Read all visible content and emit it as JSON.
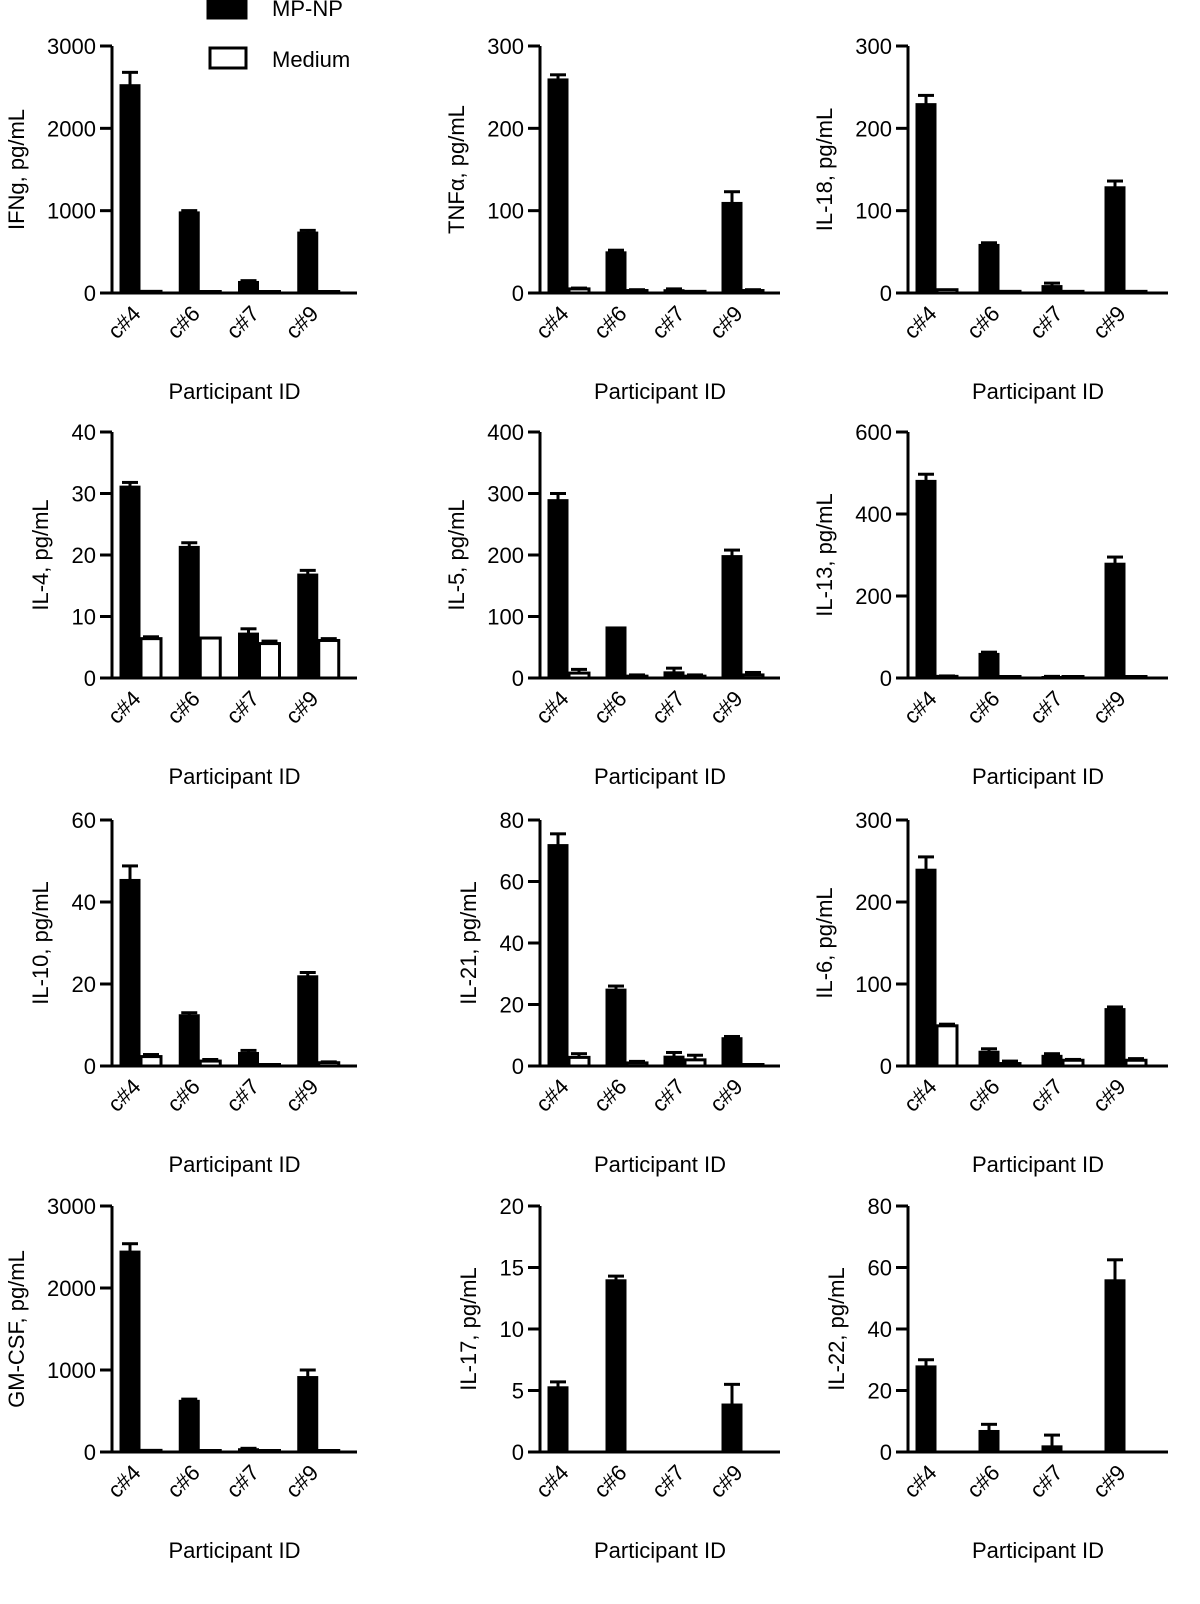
{
  "legend": [
    {
      "label": "MP-NP",
      "fill": "#000000"
    },
    {
      "label": "Medium",
      "fill": "#ffffff"
    }
  ],
  "chart_data": [
    {
      "type": "bar",
      "ylabel": "IFNg, pg/mL",
      "xlabel": "Participant ID",
      "categories": [
        "c#4",
        "c#6",
        "c#7",
        "c#9"
      ],
      "ylim": [
        0,
        3000
      ],
      "yticks": [
        0,
        1000,
        2000,
        3000
      ],
      "series": [
        {
          "name": "MP-NP",
          "values": [
            2530,
            985,
            140,
            740
          ],
          "errors": [
            150,
            15,
            10,
            20
          ]
        },
        {
          "name": "Medium",
          "values": [
            20,
            15,
            10,
            10
          ],
          "errors": [
            0,
            0,
            0,
            0
          ]
        }
      ]
    },
    {
      "type": "bar",
      "ylabel": "TNFα, pg/mL",
      "xlabel": "Participant ID",
      "categories": [
        "c#4",
        "c#6",
        "c#7",
        "c#9"
      ],
      "ylim": [
        0,
        300
      ],
      "yticks": [
        0,
        100,
        200,
        300
      ],
      "series": [
        {
          "name": "MP-NP",
          "values": [
            260,
            50,
            4,
            110
          ],
          "errors": [
            5,
            2,
            1,
            13
          ]
        },
        {
          "name": "Medium",
          "values": [
            5,
            3,
            2,
            3
          ],
          "errors": [
            1,
            1,
            0,
            1
          ]
        }
      ]
    },
    {
      "type": "bar",
      "ylabel": "IL-18, pg/mL",
      "xlabel": "Participant ID",
      "categories": [
        "c#4",
        "c#6",
        "c#7",
        "c#9"
      ],
      "ylim": [
        0,
        300
      ],
      "yticks": [
        0,
        100,
        200,
        300
      ],
      "series": [
        {
          "name": "MP-NP",
          "values": [
            230,
            59,
            9,
            129
          ],
          "errors": [
            10,
            2,
            3,
            7
          ]
        },
        {
          "name": "Medium",
          "values": [
            4,
            2,
            2,
            2
          ],
          "errors": [
            0,
            0,
            0,
            0
          ]
        }
      ]
    },
    {
      "type": "bar",
      "ylabel": "IL-4, pg/mL",
      "xlabel": "Participant ID",
      "categories": [
        "c#4",
        "c#6",
        "c#7",
        "c#9"
      ],
      "ylim": [
        0,
        40
      ],
      "yticks": [
        0,
        10,
        20,
        30,
        40
      ],
      "series": [
        {
          "name": "MP-NP",
          "values": [
            31.2,
            21.4,
            7.3,
            16.9
          ],
          "errors": [
            0.6,
            0.6,
            0.7,
            0.6
          ]
        },
        {
          "name": "Medium",
          "values": [
            6.4,
            6.5,
            5.6,
            6.1
          ],
          "errors": [
            0.3,
            0,
            0.4,
            0.3
          ]
        }
      ]
    },
    {
      "type": "bar",
      "ylabel": "IL-5, pg/mL",
      "xlabel": "Participant ID",
      "categories": [
        "c#4",
        "c#6",
        "c#7",
        "c#9"
      ],
      "ylim": [
        0,
        400
      ],
      "yticks": [
        0,
        100,
        200,
        300,
        400
      ],
      "series": [
        {
          "name": "MP-NP",
          "values": [
            290,
            83,
            10,
            199
          ],
          "errors": [
            10,
            0,
            6,
            9
          ]
        },
        {
          "name": "Medium",
          "values": [
            8,
            3,
            3,
            5
          ],
          "errors": [
            6,
            2,
            2,
            4
          ]
        }
      ]
    },
    {
      "type": "bar",
      "ylabel": "IL-13, pg/mL",
      "xlabel": "Participant ID",
      "categories": [
        "c#4",
        "c#6",
        "c#7",
        "c#9"
      ],
      "ylim": [
        0,
        600
      ],
      "yticks": [
        0,
        200,
        400,
        600
      ],
      "series": [
        {
          "name": "MP-NP",
          "values": [
            482,
            60,
            3,
            280
          ],
          "errors": [
            15,
            3,
            1,
            15
          ]
        },
        {
          "name": "Medium",
          "values": [
            4,
            2,
            2,
            2
          ],
          "errors": [
            1,
            0,
            0,
            0
          ]
        }
      ]
    },
    {
      "type": "bar",
      "ylabel": "IL-10, pg/mL",
      "xlabel": "Participant ID",
      "categories": [
        "c#4",
        "c#6",
        "c#7",
        "c#9"
      ],
      "ylim": [
        0,
        60
      ],
      "yticks": [
        0,
        20,
        40,
        60
      ],
      "series": [
        {
          "name": "MP-NP",
          "values": [
            45.5,
            12.5,
            3.3,
            22
          ],
          "errors": [
            3.3,
            0.5,
            0.5,
            0.8
          ]
        },
        {
          "name": "Medium",
          "values": [
            2.3,
            1.2,
            0.2,
            0.8
          ],
          "errors": [
            0.5,
            0.4,
            0,
            0.2
          ]
        }
      ]
    },
    {
      "type": "bar",
      "ylabel": "IL-21, pg/mL",
      "xlabel": "Participant ID",
      "categories": [
        "c#4",
        "c#6",
        "c#7",
        "c#9"
      ],
      "ylim": [
        0,
        80
      ],
      "yticks": [
        0,
        20,
        40,
        60,
        80
      ],
      "series": [
        {
          "name": "MP-NP",
          "values": [
            72,
            25,
            3.2,
            9.2
          ],
          "errors": [
            3.5,
            1,
            1.2,
            0.4
          ]
        },
        {
          "name": "Medium",
          "values": [
            2.8,
            1,
            2,
            0.3
          ],
          "errors": [
            1.2,
            0.5,
            1.5,
            0
          ]
        }
      ]
    },
    {
      "type": "bar",
      "ylabel": "IL-6, pg/mL",
      "xlabel": "Participant ID",
      "categories": [
        "c#4",
        "c#6",
        "c#7",
        "c#9"
      ],
      "ylim": [
        0,
        300
      ],
      "yticks": [
        0,
        100,
        200,
        300
      ],
      "series": [
        {
          "name": "MP-NP",
          "values": [
            240,
            18,
            13,
            70
          ],
          "errors": [
            15,
            3,
            2,
            2
          ]
        },
        {
          "name": "Medium",
          "values": [
            49,
            3,
            7,
            7
          ],
          "errors": [
            2,
            3,
            1,
            2
          ]
        }
      ]
    },
    {
      "type": "bar",
      "ylabel": "GM-CSF, pg/mL",
      "xlabel": "Participant ID",
      "categories": [
        "c#4",
        "c#6",
        "c#7",
        "c#9"
      ],
      "ylim": [
        0,
        3000
      ],
      "yticks": [
        0,
        1000,
        2000,
        3000
      ],
      "series": [
        {
          "name": "MP-NP",
          "values": [
            2450,
            630,
            40,
            920
          ],
          "errors": [
            90,
            15,
            5,
            80
          ]
        },
        {
          "name": "Medium",
          "values": [
            20,
            10,
            5,
            10
          ],
          "errors": [
            0,
            0,
            0,
            0
          ]
        }
      ]
    },
    {
      "type": "bar",
      "ylabel": "IL-17, pg/mL",
      "xlabel": "Participant ID",
      "categories": [
        "c#4",
        "c#6",
        "c#7",
        "c#9"
      ],
      "ylim": [
        0,
        20
      ],
      "yticks": [
        0,
        5,
        10,
        15,
        20
      ],
      "series": [
        {
          "name": "MP-NP",
          "values": [
            5.3,
            14,
            0,
            3.9
          ],
          "errors": [
            0.4,
            0.3,
            0,
            1.6
          ]
        },
        {
          "name": "Medium",
          "values": [
            0,
            0,
            0,
            0
          ],
          "errors": [
            0,
            0,
            0,
            0
          ]
        }
      ]
    },
    {
      "type": "bar",
      "ylabel": "IL-22, pg/mL",
      "xlabel": "Participant ID",
      "categories": [
        "c#4",
        "c#6",
        "c#7",
        "c#9"
      ],
      "ylim": [
        0,
        80
      ],
      "yticks": [
        0,
        20,
        40,
        60,
        80
      ],
      "series": [
        {
          "name": "MP-NP",
          "values": [
            28,
            7,
            2,
            56
          ],
          "errors": [
            2,
            2,
            3.5,
            6.5
          ]
        },
        {
          "name": "Medium",
          "values": [
            0,
            0,
            0,
            0
          ],
          "errors": [
            0,
            0,
            0,
            0
          ]
        }
      ]
    }
  ]
}
